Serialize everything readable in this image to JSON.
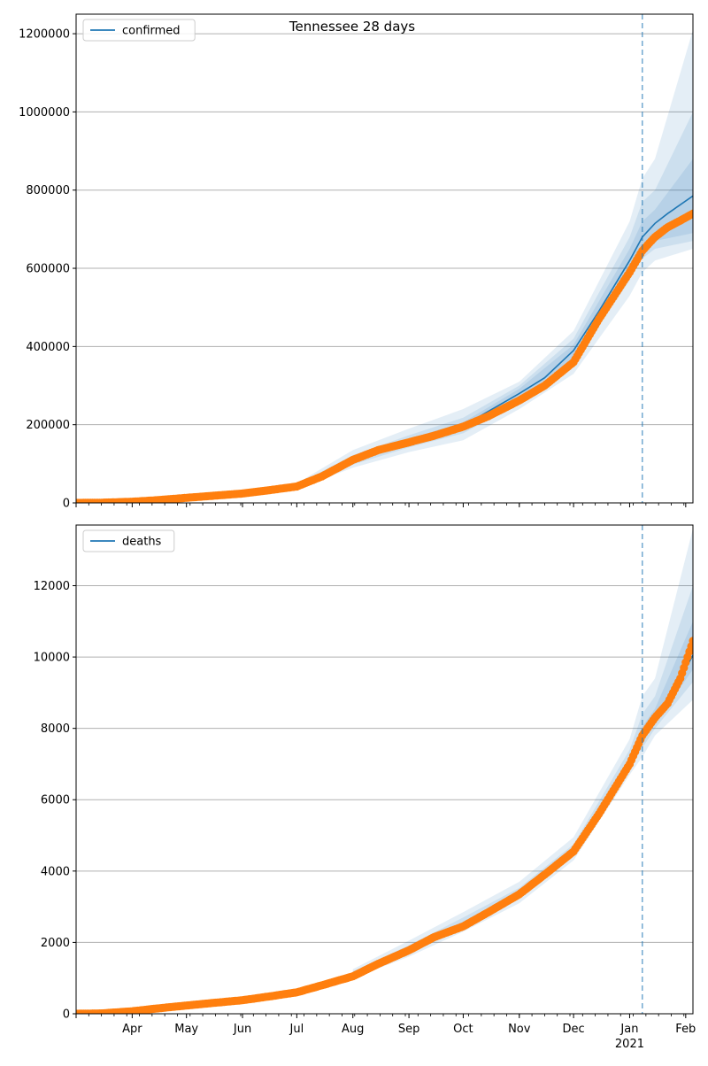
{
  "figure": {
    "title": "Tennessee 28 days"
  },
  "x_axis": {
    "month_labels": [
      "Apr",
      "May",
      "Jun",
      "Jul",
      "Aug",
      "Sep",
      "Oct",
      "Nov",
      "Dec",
      "Jan",
      "Feb"
    ],
    "year_label": "2021",
    "start_date": "2020-03-01",
    "end_date": "2021-02-05",
    "projection_start": "2021-01-08"
  },
  "colors": {
    "model": "#1f77b4",
    "observed": "#ff7f0e",
    "band": "#1f77b4",
    "grid": "#b0b0b0",
    "projection_line": "#1f77b4"
  },
  "chart_data": [
    {
      "type": "line",
      "name": "confirmed",
      "legend": "confirmed",
      "legend_position": "top-left",
      "grid": "horizontal",
      "ylim": [
        0,
        1250000
      ],
      "yticks": [
        0,
        200000,
        400000,
        600000,
        800000,
        1000000,
        1200000
      ],
      "ytick_labels": [
        "0",
        "200000",
        "400000",
        "600000",
        "800000",
        "1000000",
        "1200000"
      ],
      "model_series": {
        "x": [
          "2020-03-01",
          "2020-04-01",
          "2020-05-01",
          "2020-06-01",
          "2020-07-01",
          "2020-08-01",
          "2020-09-01",
          "2020-10-01",
          "2020-11-01",
          "2020-11-15",
          "2020-12-01",
          "2020-12-15",
          "2021-01-01",
          "2021-01-08",
          "2021-01-15",
          "2021-01-22",
          "2021-02-05"
        ],
        "y": [
          0,
          3000,
          13000,
          23000,
          43000,
          110000,
          157000,
          197000,
          280000,
          320000,
          390000,
          490000,
          620000,
          680000,
          715000,
          740000,
          785000
        ]
      },
      "bands": [
        {
          "x": [
            "2020-07-01",
            "2020-08-01",
            "2020-09-01",
            "2020-10-01",
            "2020-11-01",
            "2020-12-01",
            "2021-01-01",
            "2021-01-08",
            "2021-01-15",
            "2021-02-05"
          ],
          "lower": [
            36000,
            90000,
            130000,
            160000,
            240000,
            330000,
            530000,
            590000,
            620000,
            650000
          ],
          "upper": [
            50000,
            135000,
            190000,
            240000,
            310000,
            440000,
            720000,
            830000,
            880000,
            1210000
          ]
        },
        {
          "x": [
            "2020-07-01",
            "2020-08-01",
            "2020-09-01",
            "2020-10-01",
            "2020-11-01",
            "2020-12-01",
            "2021-01-01",
            "2021-01-08",
            "2021-01-15",
            "2021-02-05"
          ],
          "lower": [
            39000,
            98000,
            142000,
            178000,
            255000,
            355000,
            570000,
            625000,
            650000,
            670000
          ],
          "upper": [
            47000,
            122000,
            173000,
            218000,
            300000,
            420000,
            680000,
            770000,
            800000,
            1000000
          ]
        },
        {
          "x": [
            "2020-07-01",
            "2020-08-01",
            "2020-09-01",
            "2020-10-01",
            "2020-11-01",
            "2020-12-01",
            "2021-01-01",
            "2021-01-08",
            "2021-01-15",
            "2021-02-05"
          ],
          "lower": [
            41000,
            104000,
            150000,
            188000,
            265000,
            372000,
            595000,
            648000,
            670000,
            690000
          ],
          "upper": [
            45000,
            116000,
            164000,
            206000,
            292000,
            405000,
            650000,
            720000,
            750000,
            880000
          ]
        }
      ],
      "observed_series": {
        "x": [
          "2020-03-01",
          "2020-03-15",
          "2020-04-01",
          "2020-04-15",
          "2020-05-01",
          "2020-05-15",
          "2020-06-01",
          "2020-06-15",
          "2020-07-01",
          "2020-07-15",
          "2020-08-01",
          "2020-08-15",
          "2020-09-01",
          "2020-09-15",
          "2020-10-01",
          "2020-10-15",
          "2020-11-01",
          "2020-11-15",
          "2020-12-01",
          "2020-12-15",
          "2021-01-01",
          "2021-01-08",
          "2021-01-15",
          "2021-01-22",
          "2021-01-29",
          "2021-02-05"
        ],
        "y": [
          0,
          500,
          3000,
          7000,
          13000,
          18000,
          24000,
          32000,
          42000,
          68000,
          110000,
          135000,
          155000,
          172000,
          195000,
          222000,
          262000,
          300000,
          360000,
          470000,
          590000,
          645000,
          680000,
          705000,
          722000,
          740000
        ]
      }
    },
    {
      "type": "line",
      "name": "deaths",
      "legend": "deaths",
      "legend_position": "top-left",
      "grid": "horizontal",
      "ylim": [
        0,
        13700
      ],
      "yticks": [
        0,
        2000,
        4000,
        6000,
        8000,
        10000,
        12000
      ],
      "ytick_labels": [
        "0",
        "2000",
        "4000",
        "6000",
        "8000",
        "10000",
        "12000"
      ],
      "model_series": {
        "x": [
          "2020-03-01",
          "2020-04-01",
          "2020-05-01",
          "2020-06-01",
          "2020-07-01",
          "2020-08-01",
          "2020-09-01",
          "2020-10-01",
          "2020-11-01",
          "2020-12-01",
          "2020-12-15",
          "2021-01-01",
          "2021-01-08",
          "2021-01-15",
          "2021-01-22",
          "2021-02-05"
        ],
        "y": [
          0,
          70,
          230,
          380,
          600,
          1100,
          1780,
          2500,
          3350,
          4550,
          5650,
          7050,
          7750,
          8300,
          8800,
          10050
        ]
      },
      "bands": [
        {
          "x": [
            "2020-08-01",
            "2020-09-01",
            "2020-10-01",
            "2020-11-01",
            "2020-12-01",
            "2021-01-01",
            "2021-01-08",
            "2021-01-15",
            "2021-02-05"
          ],
          "lower": [
            1000,
            1600,
            2300,
            3100,
            4300,
            6700,
            7200,
            7800,
            8800
          ],
          "upper": [
            1250,
            2050,
            2850,
            3700,
            4950,
            7700,
            8900,
            9400,
            13600
          ]
        },
        {
          "x": [
            "2020-08-01",
            "2020-09-01",
            "2020-10-01",
            "2020-11-01",
            "2020-12-01",
            "2021-01-01",
            "2021-01-08",
            "2021-01-15",
            "2021-02-05"
          ],
          "lower": [
            1040,
            1680,
            2390,
            3220,
            4420,
            6850,
            7450,
            8000,
            9300
          ],
          "upper": [
            1190,
            1920,
            2700,
            3530,
            4750,
            7400,
            8400,
            8900,
            12000
          ]
        },
        {
          "x": [
            "2020-08-01",
            "2020-09-01",
            "2020-10-01",
            "2020-11-01",
            "2020-12-01",
            "2021-01-01",
            "2021-01-08",
            "2021-01-15",
            "2021-02-05"
          ],
          "lower": [
            1070,
            1730,
            2450,
            3290,
            4490,
            6950,
            7600,
            8150,
            9650
          ],
          "upper": [
            1140,
            1840,
            2580,
            3420,
            4620,
            7200,
            8050,
            8550,
            11000
          ]
        }
      ],
      "observed_series": {
        "x": [
          "2020-03-01",
          "2020-03-15",
          "2020-04-01",
          "2020-04-15",
          "2020-05-01",
          "2020-05-15",
          "2020-06-01",
          "2020-06-15",
          "2020-07-01",
          "2020-07-15",
          "2020-08-01",
          "2020-08-15",
          "2020-09-01",
          "2020-09-15",
          "2020-10-01",
          "2020-10-15",
          "2020-11-01",
          "2020-11-15",
          "2020-12-01",
          "2020-12-15",
          "2021-01-01",
          "2021-01-08",
          "2021-01-15",
          "2021-01-22",
          "2021-01-29",
          "2021-02-05"
        ],
        "y": [
          0,
          10,
          70,
          150,
          230,
          300,
          380,
          480,
          600,
          800,
          1050,
          1400,
          1780,
          2150,
          2450,
          2850,
          3350,
          3900,
          4550,
          5600,
          7000,
          7800,
          8300,
          8700,
          9400,
          10450
        ]
      }
    }
  ]
}
